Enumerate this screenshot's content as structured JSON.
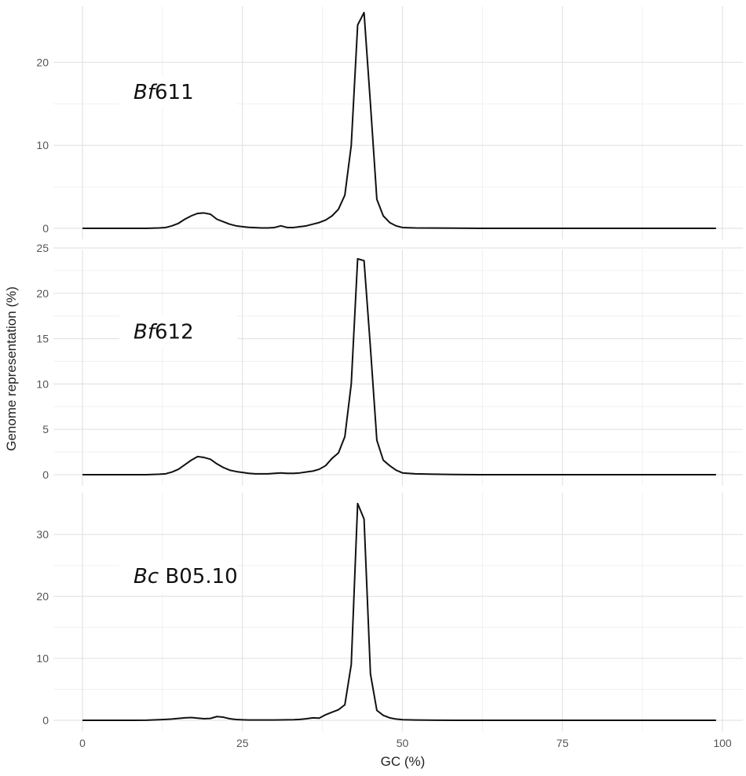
{
  "chart_data": {
    "type": "line",
    "xlabel": "GC (%)",
    "ylabel": "Genome representation (%)",
    "x_ticks": [
      0,
      25,
      50,
      75,
      100
    ],
    "xlim": [
      0,
      100
    ],
    "line_color": "#111111",
    "grid": true,
    "panels": [
      {
        "label_italic": "Bf",
        "label_rest": "611",
        "ylim": [
          0,
          26
        ],
        "y_ticks": [
          0,
          10,
          20
        ],
        "points": [
          [
            0,
            0
          ],
          [
            4,
            0
          ],
          [
            8,
            0
          ],
          [
            10,
            0
          ],
          [
            12,
            0.05
          ],
          [
            13,
            0.1
          ],
          [
            14,
            0.3
          ],
          [
            15,
            0.6
          ],
          [
            16,
            1.1
          ],
          [
            17,
            1.5
          ],
          [
            18,
            1.8
          ],
          [
            19,
            1.85
          ],
          [
            20,
            1.7
          ],
          [
            21,
            1.1
          ],
          [
            22,
            0.8
          ],
          [
            23,
            0.5
          ],
          [
            24,
            0.3
          ],
          [
            25,
            0.2
          ],
          [
            26,
            0.12
          ],
          [
            27,
            0.08
          ],
          [
            28,
            0.05
          ],
          [
            29,
            0.05
          ],
          [
            30,
            0.1
          ],
          [
            31,
            0.3
          ],
          [
            32,
            0.1
          ],
          [
            33,
            0.1
          ],
          [
            34,
            0.2
          ],
          [
            35,
            0.3
          ],
          [
            36,
            0.5
          ],
          [
            37,
            0.7
          ],
          [
            38,
            1.0
          ],
          [
            39,
            1.5
          ],
          [
            40,
            2.3
          ],
          [
            41,
            4.0
          ],
          [
            42,
            10.0
          ],
          [
            43,
            24.5
          ],
          [
            44,
            26.0
          ],
          [
            45,
            15.0
          ],
          [
            46,
            3.5
          ],
          [
            47,
            1.5
          ],
          [
            48,
            0.7
          ],
          [
            49,
            0.3
          ],
          [
            50,
            0.1
          ],
          [
            52,
            0.05
          ],
          [
            55,
            0.03
          ],
          [
            58,
            0.02
          ],
          [
            62,
            0
          ],
          [
            70,
            0
          ],
          [
            80,
            0
          ],
          [
            90,
            0
          ],
          [
            99,
            0
          ]
        ]
      },
      {
        "label_italic": "Bf",
        "label_rest": "612",
        "ylim": [
          0,
          25
        ],
        "y_ticks": [
          0,
          5,
          10,
          15,
          20,
          25
        ],
        "points": [
          [
            0,
            0
          ],
          [
            4,
            0
          ],
          [
            8,
            0
          ],
          [
            10,
            0
          ],
          [
            12,
            0.05
          ],
          [
            13,
            0.1
          ],
          [
            14,
            0.3
          ],
          [
            15,
            0.6
          ],
          [
            16,
            1.1
          ],
          [
            17,
            1.6
          ],
          [
            18,
            2.0
          ],
          [
            19,
            1.9
          ],
          [
            20,
            1.7
          ],
          [
            21,
            1.2
          ],
          [
            22,
            0.8
          ],
          [
            23,
            0.5
          ],
          [
            24,
            0.35
          ],
          [
            25,
            0.25
          ],
          [
            26,
            0.15
          ],
          [
            27,
            0.1
          ],
          [
            28,
            0.1
          ],
          [
            29,
            0.1
          ],
          [
            30,
            0.15
          ],
          [
            31,
            0.2
          ],
          [
            32,
            0.15
          ],
          [
            33,
            0.15
          ],
          [
            34,
            0.2
          ],
          [
            35,
            0.3
          ],
          [
            36,
            0.4
          ],
          [
            37,
            0.6
          ],
          [
            38,
            1.0
          ],
          [
            39,
            1.8
          ],
          [
            40,
            2.4
          ],
          [
            41,
            4.2
          ],
          [
            42,
            10.0
          ],
          [
            43,
            23.8
          ],
          [
            44,
            23.6
          ],
          [
            45,
            14.0
          ],
          [
            46,
            3.8
          ],
          [
            47,
            1.6
          ],
          [
            48,
            1.0
          ],
          [
            49,
            0.5
          ],
          [
            50,
            0.2
          ],
          [
            52,
            0.1
          ],
          [
            55,
            0.05
          ],
          [
            58,
            0.02
          ],
          [
            62,
            0
          ],
          [
            70,
            0
          ],
          [
            80,
            0
          ],
          [
            90,
            0
          ],
          [
            99,
            0
          ]
        ]
      },
      {
        "label_italic": "Bc",
        "label_rest": " B05.10",
        "ylim": [
          0,
          37
        ],
        "y_ticks": [
          0,
          10,
          20,
          30
        ],
        "points": [
          [
            0,
            0
          ],
          [
            4,
            0
          ],
          [
            8,
            0
          ],
          [
            10,
            0.02
          ],
          [
            12,
            0.1
          ],
          [
            13,
            0.15
          ],
          [
            14,
            0.2
          ],
          [
            15,
            0.3
          ],
          [
            16,
            0.4
          ],
          [
            17,
            0.45
          ],
          [
            18,
            0.35
          ],
          [
            19,
            0.25
          ],
          [
            20,
            0.3
          ],
          [
            21,
            0.6
          ],
          [
            22,
            0.5
          ],
          [
            23,
            0.25
          ],
          [
            24,
            0.12
          ],
          [
            25,
            0.08
          ],
          [
            26,
            0.05
          ],
          [
            28,
            0.05
          ],
          [
            30,
            0.05
          ],
          [
            32,
            0.08
          ],
          [
            33,
            0.1
          ],
          [
            34,
            0.15
          ],
          [
            35,
            0.25
          ],
          [
            36,
            0.4
          ],
          [
            37,
            0.35
          ],
          [
            38,
            0.9
          ],
          [
            39,
            1.3
          ],
          [
            40,
            1.7
          ],
          [
            41,
            2.5
          ],
          [
            42,
            9.0
          ],
          [
            43,
            35.0
          ],
          [
            44,
            32.5
          ],
          [
            45,
            7.5
          ],
          [
            46,
            1.6
          ],
          [
            47,
            0.8
          ],
          [
            48,
            0.4
          ],
          [
            49,
            0.2
          ],
          [
            50,
            0.1
          ],
          [
            52,
            0.05
          ],
          [
            55,
            0.02
          ],
          [
            58,
            0
          ],
          [
            62,
            0
          ],
          [
            70,
            0
          ],
          [
            80,
            0
          ],
          [
            90,
            0
          ],
          [
            99,
            0
          ]
        ]
      }
    ]
  }
}
